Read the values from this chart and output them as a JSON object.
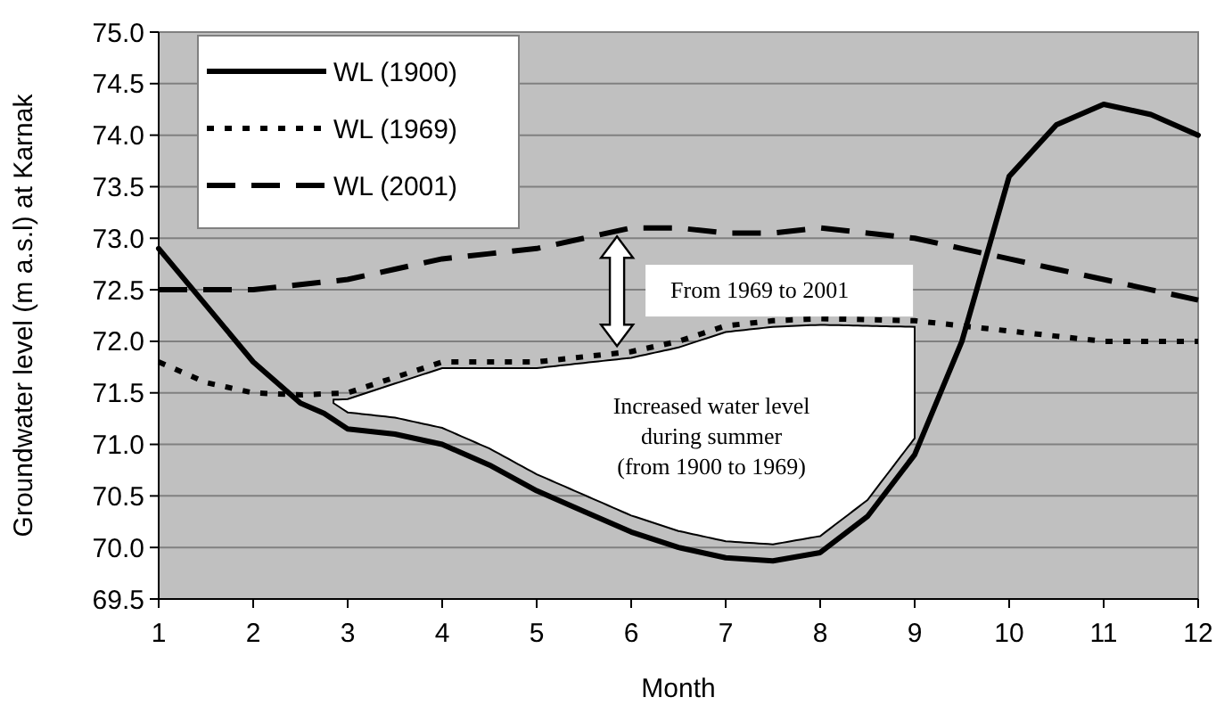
{
  "chart_data": {
    "type": "line",
    "xlabel": "Month",
    "ylabel": "Groundwater level (m a.s.l) at Karnak",
    "xlim": [
      1,
      12
    ],
    "xticks": [
      1,
      2,
      3,
      4,
      5,
      6,
      7,
      8,
      9,
      10,
      11,
      12
    ],
    "ylim": [
      69.5,
      75
    ],
    "yticks": [
      {
        "value": 69.5,
        "label": "69.5"
      },
      {
        "value": 70,
        "label": "70.0"
      },
      {
        "value": 70.5,
        "label": "70.5"
      },
      {
        "value": 71,
        "label": "71.0"
      },
      {
        "value": 71.5,
        "label": "71.5"
      },
      {
        "value": 72,
        "label": "72.0"
      },
      {
        "value": 72.5,
        "label": "72.5"
      },
      {
        "value": 73,
        "label": "73.0"
      },
      {
        "value": 73.5,
        "label": "73.5"
      },
      {
        "value": 74,
        "label": "74.0"
      },
      {
        "value": 74.5,
        "label": "74.5"
      },
      {
        "value": 75,
        "label": "75.0"
      }
    ],
    "grid": "y",
    "legend": "top left",
    "series": [
      {
        "name": "WL (1900)",
        "color": "#000000",
        "line_style": "solid",
        "x": [
          1,
          1.5,
          2,
          2.5,
          2.75,
          3,
          3.5,
          4,
          4.5,
          5,
          5.5,
          6,
          6.5,
          7,
          7.5,
          8,
          8.5,
          9,
          9.5,
          10,
          10.5,
          11,
          11.5,
          12
        ],
        "values": [
          72.9,
          72.35,
          71.8,
          71.4,
          71.3,
          71.15,
          71.1,
          71.0,
          70.8,
          70.55,
          70.35,
          70.15,
          70.0,
          69.9,
          69.87,
          69.95,
          70.3,
          70.9,
          72.0,
          73.6,
          74.1,
          74.3,
          74.2,
          74.0
        ]
      },
      {
        "name": "WL (1969)",
        "color": "#000000",
        "line_style": "dotted",
        "x": [
          1,
          1.5,
          2,
          2.5,
          3,
          3.5,
          4,
          4.5,
          5,
          5.5,
          6,
          6.5,
          7,
          7.5,
          8,
          9,
          9.5,
          10,
          10.5,
          11,
          12
        ],
        "values": [
          71.8,
          71.6,
          71.5,
          71.48,
          71.5,
          71.65,
          71.8,
          71.8,
          71.8,
          71.85,
          71.9,
          72.0,
          72.15,
          72.2,
          72.22,
          72.2,
          72.15,
          72.1,
          72.05,
          72.0,
          72.0
        ]
      },
      {
        "name": "WL (2001)",
        "color": "#000000",
        "line_style": "dashed",
        "x": [
          1,
          2,
          2.5,
          3,
          3.5,
          4,
          4.5,
          5,
          5.5,
          6,
          6.5,
          7,
          7.5,
          8,
          8.5,
          9,
          9.5,
          10,
          10.5,
          11,
          11.5,
          12
        ],
        "values": [
          72.5,
          72.5,
          72.55,
          72.6,
          72.7,
          72.8,
          72.85,
          72.9,
          73.0,
          73.1,
          73.1,
          73.05,
          73.05,
          73.1,
          73.05,
          73.0,
          72.9,
          72.8,
          72.7,
          72.6,
          72.5,
          72.4
        ]
      }
    ],
    "annotations": [
      "From 1969 to 2001",
      "Increased water level during summer (from 1900 to 1969)"
    ]
  }
}
